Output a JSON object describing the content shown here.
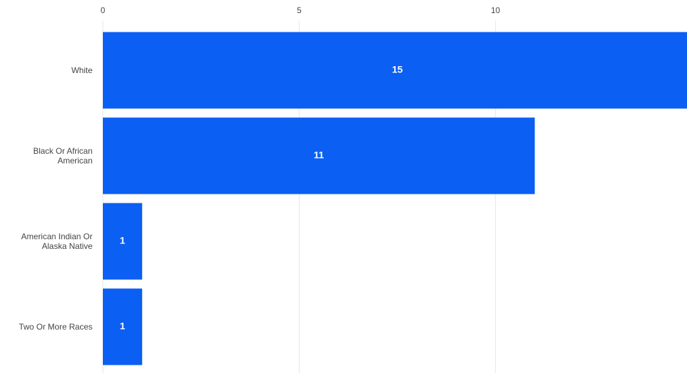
{
  "chart_data": {
    "type": "bar",
    "orientation": "horizontal",
    "categories": [
      "White",
      "Black Or African American",
      "American Indian Or Alaska Native",
      "Two Or More Races"
    ],
    "values": [
      15,
      11,
      1,
      1
    ],
    "color": "#0b5ff2",
    "xlim": [
      0,
      15
    ],
    "xticks": [
      0,
      5,
      10,
      15
    ],
    "grid": true
  }
}
